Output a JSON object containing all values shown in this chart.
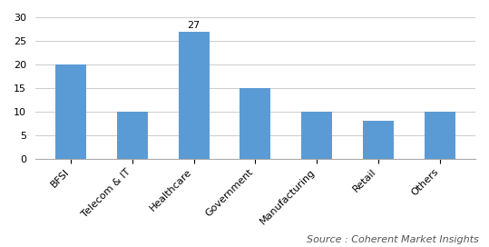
{
  "categories": [
    "BFSI",
    "Telecom & IT",
    "Healthcare",
    "Government",
    "Manufacturing",
    "Retail",
    "Others"
  ],
  "values": [
    20,
    10,
    27,
    15,
    10,
    8,
    10
  ],
  "bar_color": "#5b9bd5",
  "annotate_bar_index": 2,
  "annotate_bar_label": "27",
  "ylim": [
    0,
    30
  ],
  "yticks": [
    0,
    5,
    10,
    15,
    20,
    25,
    30
  ],
  "source_text": "Source : Coherent Market Insights",
  "source_fontsize": 8,
  "tick_fontsize": 8,
  "annotation_fontsize": 8,
  "bar_width": 0.5,
  "background_color": "#ffffff",
  "grid_color": "#cccccc"
}
